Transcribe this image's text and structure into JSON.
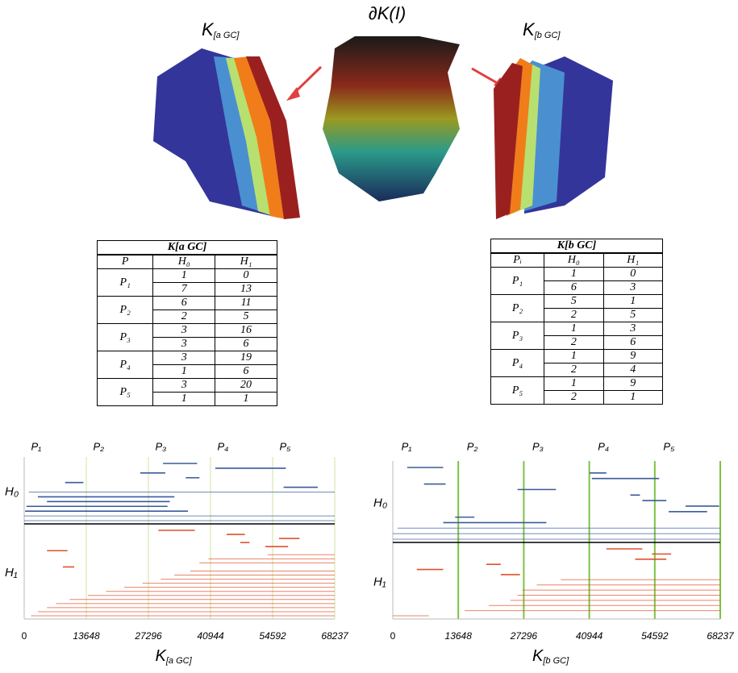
{
  "figure": {
    "title": "∂K(I)",
    "left_label": {
      "main": "K",
      "sub": "[a GC]"
    },
    "right_label": {
      "main": "K",
      "sub": "[b GC]"
    }
  },
  "tables": [
    {
      "title": "K[a GC]",
      "header": [
        "P",
        "H₀",
        "H₁"
      ],
      "rows": [
        {
          "label": "P₁",
          "values": [
            [
              1,
              0
            ],
            [
              7,
              13
            ]
          ]
        },
        {
          "label": "P₂",
          "values": [
            [
              6,
              11
            ],
            [
              2,
              5
            ]
          ]
        },
        {
          "label": "P₃",
          "values": [
            [
              3,
              16
            ],
            [
              3,
              6
            ]
          ]
        },
        {
          "label": "P₄",
          "values": [
            [
              3,
              19
            ],
            [
              1,
              6
            ]
          ]
        },
        {
          "label": "P₅",
          "values": [
            [
              3,
              20
            ],
            [
              1,
              1
            ]
          ]
        }
      ]
    },
    {
      "title": "K[b GC]",
      "header": [
        "Pᵢ",
        "H₀",
        "H₁"
      ],
      "rows": [
        {
          "label": "P₁",
          "values": [
            [
              1,
              0
            ],
            [
              6,
              3
            ]
          ]
        },
        {
          "label": "P₂",
          "values": [
            [
              5,
              1
            ],
            [
              2,
              5
            ]
          ]
        },
        {
          "label": "P₃",
          "values": [
            [
              1,
              3
            ],
            [
              2,
              6
            ]
          ]
        },
        {
          "label": "P₄",
          "values": [
            [
              1,
              9
            ],
            [
              2,
              4
            ]
          ]
        },
        {
          "label": "P₅",
          "values": [
            [
              1,
              9
            ],
            [
              2,
              1
            ]
          ]
        }
      ]
    }
  ],
  "chart_data": [
    {
      "type": "barcode",
      "xlabel": {
        "main": "K",
        "sub": "[a GC]"
      },
      "xlim": [
        0,
        68237
      ],
      "xticks": [
        0,
        13648,
        27296,
        40944,
        54592,
        68237
      ],
      "sections": [
        "P₁",
        "P₂",
        "P₃",
        "P₄",
        "P₅"
      ],
      "section_color": "#cfe3a0",
      "series": [
        {
          "name": "H₀",
          "color": "#3b5a9a",
          "intervals": [
            [
              30500,
              38000
            ],
            [
              42000,
              57500
            ],
            [
              25500,
              31000
            ],
            [
              35500,
              38500
            ],
            [
              9000,
              13000
            ],
            [
              57000,
              64500
            ],
            [
              1000,
              68237
            ],
            [
              3000,
              33000
            ],
            [
              5000,
              32000
            ],
            [
              500,
              31500
            ],
            [
              200,
              36000
            ],
            [
              0,
              68237
            ],
            [
              0,
              68237
            ]
          ]
        },
        {
          "name": "H₁",
          "color": "#e0502a",
          "intervals": [
            [
              29500,
              37500
            ],
            [
              44500,
              48500
            ],
            [
              56000,
              60500
            ],
            [
              47500,
              49500
            ],
            [
              53000,
              58000
            ],
            [
              5000,
              9500
            ],
            [
              53500,
              68237
            ],
            [
              40500,
              68237
            ],
            [
              38500,
              68237
            ],
            [
              8500,
              11000
            ],
            [
              36500,
              68237
            ],
            [
              33000,
              68237
            ],
            [
              30000,
              68237
            ],
            [
              26000,
              68237
            ],
            [
              22000,
              68237
            ],
            [
              18000,
              68237
            ],
            [
              14000,
              68237
            ],
            [
              10000,
              68237
            ],
            [
              7000,
              68237
            ],
            [
              5000,
              68237
            ],
            [
              3000,
              68237
            ],
            [
              1500,
              68237
            ]
          ]
        }
      ]
    },
    {
      "type": "barcode",
      "xlabel": {
        "main": "K",
        "sub": "[b GC]"
      },
      "xlim": [
        0,
        68237
      ],
      "xticks": [
        0,
        13648,
        27296,
        40944,
        54592,
        68237
      ],
      "sections": [
        "P₁",
        "P₂",
        "P₃",
        "P₄",
        "P₅"
      ],
      "section_color": "#7cc242",
      "series": [
        {
          "name": "H₀",
          "color": "#3b5a9a",
          "intervals": [
            [
              3000,
              10500
            ],
            [
              41000,
              44500
            ],
            [
              41500,
              55500
            ],
            [
              6500,
              11000
            ],
            [
              26000,
              34000
            ],
            [
              49500,
              51500
            ],
            [
              52000,
              57000
            ],
            [
              61000,
              68000
            ],
            [
              57500,
              65500
            ],
            [
              13000,
              17000
            ],
            [
              10500,
              32000
            ],
            [
              1000,
              68237
            ],
            [
              0,
              68237
            ],
            [
              0,
              68237
            ]
          ]
        },
        {
          "name": "H₁",
          "color": "#e0502a",
          "intervals": [
            [
              44500,
              52000
            ],
            [
              54000,
              58000
            ],
            [
              50500,
              57000
            ],
            [
              19500,
              22500
            ],
            [
              5000,
              10500
            ],
            [
              22500,
              26500
            ],
            [
              35000,
              68237
            ],
            [
              30000,
              68237
            ],
            [
              27000,
              68237
            ],
            [
              26000,
              68237
            ],
            [
              24500,
              68237
            ],
            [
              20000,
              68237
            ],
            [
              15000,
              68237
            ],
            [
              0,
              7500
            ]
          ]
        }
      ]
    }
  ]
}
